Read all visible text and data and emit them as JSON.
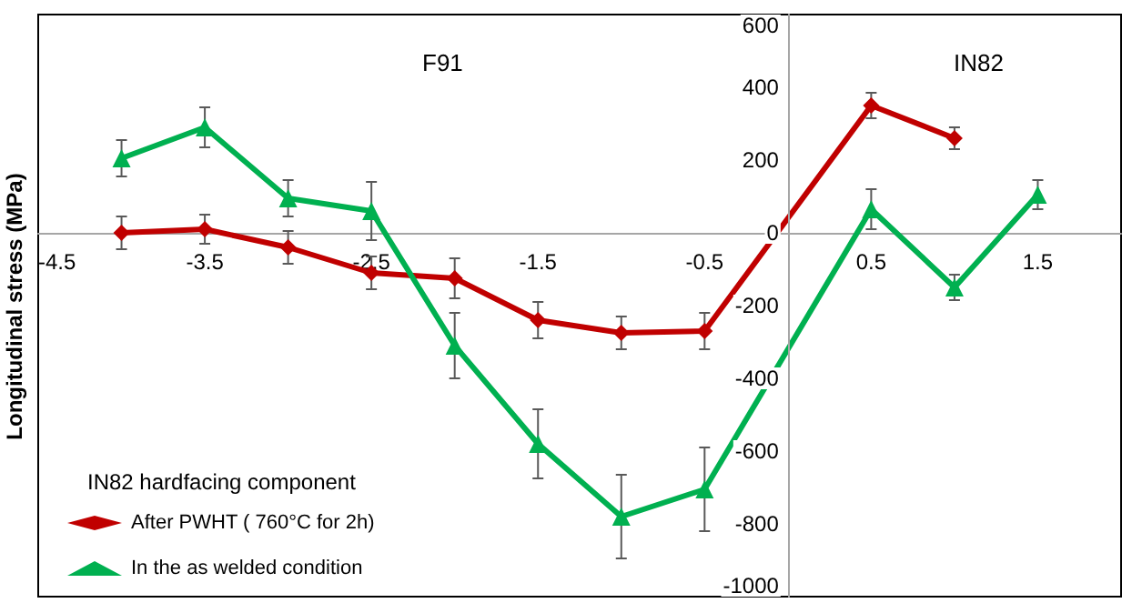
{
  "chart_data": {
    "type": "line",
    "ylabel": "Longitudinal stress (MPa)",
    "legend_title": "IN82 hardfacing component",
    "annotations": [
      "F91",
      "IN82"
    ],
    "xlim": [
      -4.5,
      2
    ],
    "xticks": [
      -4.5,
      -3.5,
      -2.5,
      -1.5,
      -0.5,
      0.5,
      1.5
    ],
    "ylim": [
      -1000,
      600
    ],
    "yticks": [
      -1000,
      -800,
      -600,
      -400,
      -200,
      0,
      200,
      400,
      600
    ],
    "grid": false,
    "legend": "bottom left",
    "line_style": "solid",
    "series": [
      {
        "name": "After PWHT ( 760°C for 2h)",
        "color": "#c00000",
        "marker": "diamond",
        "x": [
          -4,
          -3.5,
          -3,
          -2.5,
          -2,
          -1.5,
          -1,
          -0.5,
          0.5,
          1
        ],
        "values": [
          0,
          10,
          -40,
          -110,
          -125,
          -240,
          -275,
          -270,
          350,
          260
        ],
        "errors": [
          45,
          40,
          45,
          45,
          55,
          50,
          45,
          50,
          35,
          30
        ]
      },
      {
        "name": "In the as welded condition",
        "color": "#00b050",
        "marker": "triangle",
        "x": [
          -4,
          -3.5,
          -3,
          -2.5,
          -2,
          -1.5,
          -1,
          -0.5,
          0.5,
          1,
          1.5
        ],
        "values": [
          205,
          290,
          95,
          60,
          -310,
          -580,
          -780,
          -705,
          65,
          -150,
          105
        ],
        "errors": [
          50,
          55,
          50,
          80,
          90,
          95,
          115,
          115,
          55,
          35,
          40
        ]
      }
    ]
  }
}
